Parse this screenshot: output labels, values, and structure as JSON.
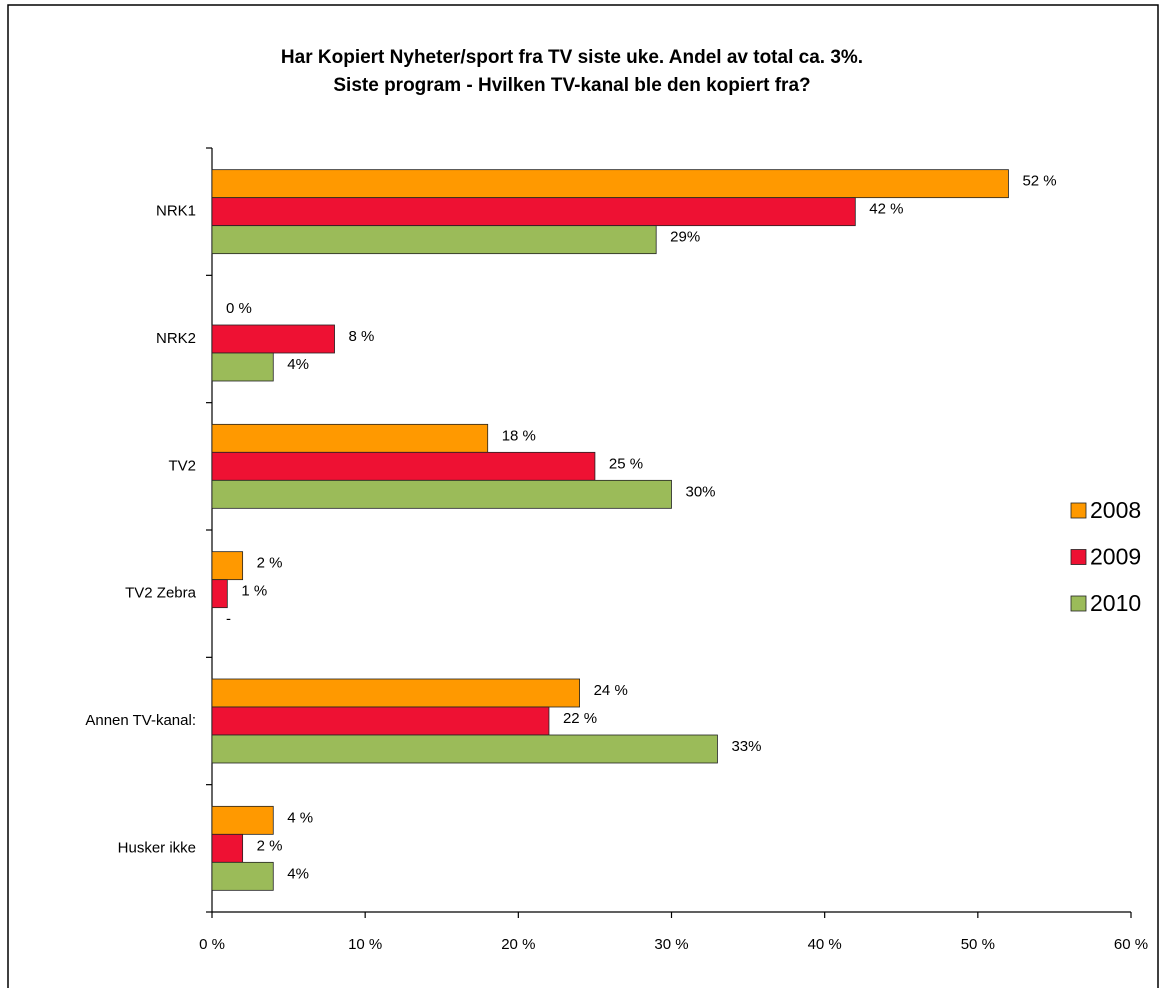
{
  "chart_data": {
    "type": "hbar",
    "title": [
      "Har Kopiert Nyheter/sport  fra TV siste uke. Andel av total ca. 3%.",
      "Siste program - Hvilken TV-kanal ble den kopiert fra?"
    ],
    "categories": [
      "NRK1",
      "NRK2",
      "TV2",
      "TV2 Zebra",
      "Annen TV-kanal:",
      "Husker ikke"
    ],
    "series": [
      {
        "name": "2008",
        "color": "#ff9900",
        "values": [
          52,
          0,
          18,
          2,
          24,
          4
        ],
        "value_labels": [
          "52 %",
          "0 %",
          "18 %",
          "2 %",
          "24 %",
          "4 %"
        ]
      },
      {
        "name": "2009",
        "color": "#ee1133",
        "values": [
          42,
          8,
          25,
          1,
          22,
          2
        ],
        "value_labels": [
          "42 %",
          "8 %",
          "25 %",
          "1 %",
          "22 %",
          "2 %"
        ]
      },
      {
        "name": "2010",
        "color": "#9bbb59",
        "values": [
          29,
          4,
          30,
          null,
          33,
          4
        ],
        "value_labels": [
          "29%",
          "4%",
          "30%",
          "-",
          "33%",
          "4%"
        ]
      }
    ],
    "xlim": [
      0,
      60
    ],
    "xticks": [
      {
        "value": 0,
        "label": "0 %"
      },
      {
        "value": 10,
        "label": "10 %"
      },
      {
        "value": 20,
        "label": "20 %"
      },
      {
        "value": 30,
        "label": "30 %"
      },
      {
        "value": 40,
        "label": "40 %"
      },
      {
        "value": 50,
        "label": "50 %"
      },
      {
        "value": 60,
        "label": "60 %"
      }
    ],
    "legend": "right"
  }
}
